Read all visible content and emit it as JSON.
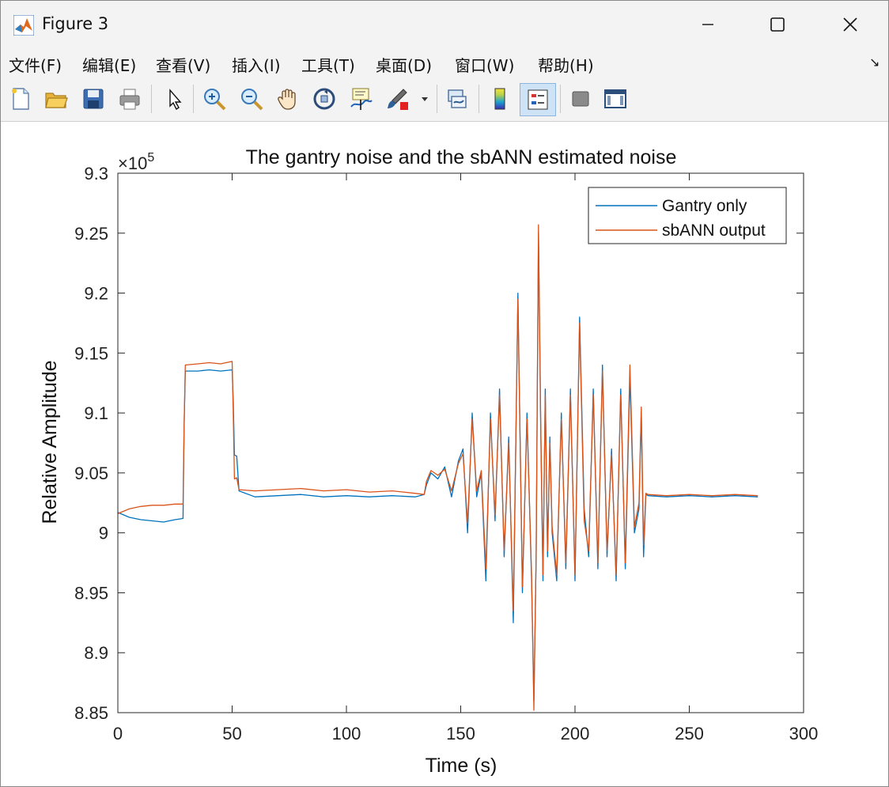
{
  "window": {
    "title": "Figure 3",
    "controls": {
      "minimize": "minimize",
      "maximize": "maximize",
      "close": "close"
    }
  },
  "menu": {
    "items": [
      "文件(F)",
      "编辑(E)",
      "查看(V)",
      "插入(I)",
      "工具(T)",
      "桌面(D)",
      "窗口(W)",
      "帮助(H)"
    ],
    "dock_arrow": "↘"
  },
  "toolbar": {
    "icons": [
      "new-figure-icon",
      "open-file-icon",
      "save-icon",
      "print-icon",
      "edit-pointer-icon",
      "zoom-in-icon",
      "zoom-out-icon",
      "pan-hand-icon",
      "rotate-3d-icon",
      "data-cursor-icon",
      "brush-icon",
      "link-plot-icon",
      "colorbar-icon",
      "legend-icon",
      "hide-plot-tools-icon",
      "show-plot-tools-icon"
    ]
  },
  "chart_data": {
    "type": "line",
    "title": "The gantry noise and the sbANN estimated noise",
    "xlabel": "Time (s)",
    "ylabel": "Relative Amplitude",
    "y_exponent_label": "×10",
    "y_exponent_power": "5",
    "xlim": [
      0,
      300
    ],
    "ylim": [
      885000,
      930000
    ],
    "xticks": [
      0,
      50,
      100,
      150,
      200,
      250,
      300
    ],
    "xtick_labels": [
      "0",
      "50",
      "100",
      "150",
      "200",
      "250",
      "300"
    ],
    "yticks": [
      885000,
      890000,
      895000,
      900000,
      905000,
      910000,
      915000,
      920000,
      925000,
      930000
    ],
    "ytick_labels": [
      "8.85",
      "8.9",
      "8.95",
      "9",
      "9.05",
      "9.1",
      "9.15",
      "9.2",
      "9.25",
      "9.3"
    ],
    "grid": false,
    "legend_position": "top-right",
    "colors": {
      "gantry": "#0072BD",
      "sbann": "#D95319"
    },
    "series": [
      {
        "name": "Gantry only",
        "color": "#0072BD",
        "x": [
          0,
          5,
          10,
          15,
          20,
          25,
          28.5,
          29,
          29.5,
          35,
          40,
          45,
          50,
          50.5,
          51,
          52,
          53,
          60,
          70,
          80,
          90,
          100,
          110,
          120,
          130,
          134,
          135,
          137,
          140,
          143,
          146,
          149,
          151,
          153,
          155,
          157,
          159,
          161,
          163,
          165,
          167,
          169,
          171,
          173,
          175,
          177,
          179,
          181,
          182,
          183,
          184,
          185,
          186,
          187,
          188,
          189,
          190,
          192,
          194,
          196,
          198,
          200,
          202,
          204,
          206,
          208,
          210,
          212,
          214,
          216,
          218,
          220,
          222,
          224,
          226,
          228,
          229,
          230,
          231,
          232,
          240,
          250,
          260,
          270,
          280
        ],
        "y": [
          901700,
          901300,
          901100,
          901000,
          900900,
          901100,
          901200,
          909000,
          913500,
          913500,
          913600,
          913500,
          913600,
          911000,
          906500,
          906400,
          903500,
          903000,
          903100,
          903200,
          903000,
          903100,
          903000,
          903100,
          903000,
          903200,
          904000,
          905000,
          904500,
          905500,
          903000,
          906000,
          907000,
          900000,
          910000,
          903000,
          905000,
          896000,
          910000,
          901000,
          912000,
          898000,
          908000,
          892500,
          920000,
          895000,
          910000,
          896000,
          886000,
          898000,
          925000,
          909000,
          896000,
          912000,
          898000,
          908000,
          900000,
          896000,
          910000,
          897000,
          912000,
          896000,
          918000,
          902000,
          898000,
          912000,
          897000,
          914000,
          898000,
          907000,
          896000,
          912000,
          897000,
          913000,
          900000,
          902000,
          910000,
          898000,
          903200,
          903100,
          903000,
          903100,
          903000,
          903100,
          903000
        ]
      },
      {
        "name": "sbANN output",
        "color": "#D95319",
        "x": [
          0,
          5,
          10,
          15,
          20,
          25,
          28.5,
          29,
          29.5,
          35,
          40,
          45,
          50,
          50.5,
          51,
          52,
          53,
          60,
          70,
          80,
          90,
          100,
          110,
          120,
          130,
          134,
          135,
          137,
          140,
          143,
          146,
          149,
          151,
          153,
          155,
          157,
          159,
          161,
          163,
          165,
          167,
          169,
          171,
          173,
          175,
          177,
          179,
          181,
          182,
          183,
          184,
          185,
          186,
          187,
          188,
          189,
          190,
          192,
          194,
          196,
          198,
          200,
          202,
          204,
          206,
          208,
          210,
          212,
          214,
          216,
          218,
          220,
          222,
          224,
          226,
          228,
          229,
          230,
          231,
          232,
          240,
          250,
          260,
          270,
          280
        ],
        "y": [
          901600,
          902000,
          902200,
          902300,
          902300,
          902400,
          902400,
          909000,
          914000,
          914100,
          914200,
          914100,
          914300,
          910000,
          904500,
          904600,
          903600,
          903500,
          903600,
          903700,
          903500,
          903600,
          903400,
          903500,
          903300,
          903200,
          904300,
          905200,
          904800,
          905300,
          903500,
          905800,
          906600,
          900800,
          909500,
          903500,
          905200,
          897000,
          909500,
          901500,
          911500,
          898500,
          907500,
          893500,
          919500,
          895500,
          909500,
          896500,
          885200,
          898500,
          925700,
          909500,
          896500,
          911500,
          898500,
          907500,
          900500,
          896500,
          909500,
          897500,
          911500,
          896500,
          917500,
          901000,
          898500,
          911500,
          897500,
          913500,
          898500,
          906500,
          896500,
          911500,
          897500,
          914000,
          900500,
          902500,
          910500,
          899000,
          903300,
          903200,
          903100,
          903200,
          903100,
          903200,
          903100
        ]
      }
    ]
  }
}
